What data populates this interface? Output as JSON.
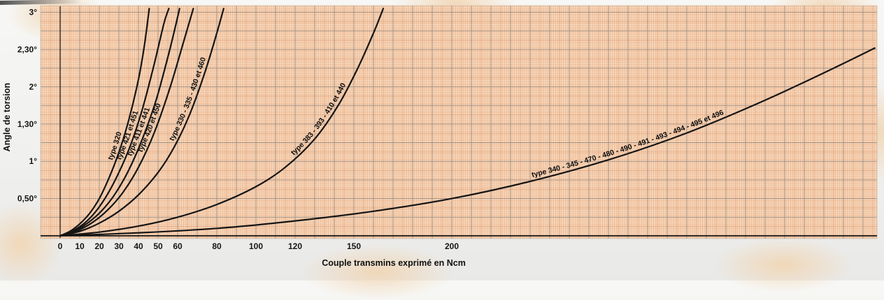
{
  "page": {
    "description": "Scanned torsion-angle vs transmitted-torque chart on orange millimeter graph paper"
  },
  "chart_data": {
    "type": "line",
    "title": "",
    "xlabel": "Couple transmins exprimé en Ncm",
    "ylabel": "Angle de torsion",
    "xlim": [
      0,
      418
    ],
    "ylim": [
      0,
      3.12
    ],
    "grid": true,
    "legend_position": "labels-along-curves",
    "colors": {
      "paper": "#f8dec6",
      "grid_fine": "#eaaa7d",
      "grid_medium": "#dd9466",
      "grid_major": "#8a7260",
      "curve": "#151515",
      "text": "#161616"
    },
    "x_ticks": [
      {
        "value": 0,
        "label": "0"
      },
      {
        "value": 10,
        "label": "10"
      },
      {
        "value": 20,
        "label": "20"
      },
      {
        "value": 30,
        "label": "30"
      },
      {
        "value": 40,
        "label": "40"
      },
      {
        "value": 50,
        "label": "50"
      },
      {
        "value": 60,
        "label": "60"
      },
      {
        "value": 80,
        "label": "80"
      },
      {
        "value": 100,
        "label": "100"
      },
      {
        "value": 120,
        "label": "120"
      },
      {
        "value": 150,
        "label": "150"
      },
      {
        "value": 200,
        "label": "200"
      }
    ],
    "y_ticks": [
      {
        "value": 3,
        "label": "3°"
      },
      {
        "value": 2.5,
        "label": "2,30°"
      },
      {
        "value": 2,
        "label": "2°"
      },
      {
        "value": 1.5,
        "label": "1,30°"
      },
      {
        "value": 1,
        "label": "1°"
      },
      {
        "value": 0.5,
        "label": "0,50°"
      }
    ],
    "series": [
      {
        "name": "type 320",
        "label_anchor_deg": 1.0,
        "points": [
          [
            0,
            0
          ],
          [
            5,
            0.06
          ],
          [
            10,
            0.16
          ],
          [
            15,
            0.3
          ],
          [
            20,
            0.5
          ],
          [
            25,
            0.78
          ],
          [
            30,
            1.12
          ],
          [
            35,
            1.55
          ],
          [
            40,
            2.1
          ],
          [
            43,
            2.55
          ],
          [
            45.5,
            3.05
          ]
        ]
      },
      {
        "name": "type 421 et 451",
        "label_anchor_deg": 1.0,
        "points": [
          [
            0,
            0
          ],
          [
            6,
            0.06
          ],
          [
            12,
            0.16
          ],
          [
            18,
            0.32
          ],
          [
            24,
            0.55
          ],
          [
            30,
            0.85
          ],
          [
            36,
            1.22
          ],
          [
            42,
            1.7
          ],
          [
            48,
            2.3
          ],
          [
            53,
            2.85
          ],
          [
            55.5,
            3.05
          ]
        ]
      },
      {
        "name": "type 411 et 441",
        "label_anchor_deg": 1.05,
        "points": [
          [
            0,
            0
          ],
          [
            7,
            0.06
          ],
          [
            14,
            0.17
          ],
          [
            21,
            0.33
          ],
          [
            28,
            0.56
          ],
          [
            35,
            0.88
          ],
          [
            42,
            1.3
          ],
          [
            49,
            1.82
          ],
          [
            56,
            2.5
          ],
          [
            61,
            3.05
          ]
        ]
      },
      {
        "name": "type 420 et 450",
        "label_anchor_deg": 1.1,
        "points": [
          [
            0,
            0
          ],
          [
            8,
            0.06
          ],
          [
            16,
            0.17
          ],
          [
            24,
            0.34
          ],
          [
            32,
            0.58
          ],
          [
            40,
            0.92
          ],
          [
            48,
            1.38
          ],
          [
            56,
            1.98
          ],
          [
            63,
            2.6
          ],
          [
            68,
            3.05
          ]
        ]
      },
      {
        "name": "type 330 - 335 - 430 et 460",
        "label_anchor_deg": 1.25,
        "points": [
          [
            0,
            0
          ],
          [
            10,
            0.06
          ],
          [
            20,
            0.17
          ],
          [
            30,
            0.33
          ],
          [
            40,
            0.55
          ],
          [
            50,
            0.85
          ],
          [
            58,
            1.18
          ],
          [
            66,
            1.62
          ],
          [
            74,
            2.2
          ],
          [
            80,
            2.72
          ],
          [
            83.5,
            3.05
          ]
        ]
      },
      {
        "name": "type 383 - 393 - 410 et 440",
        "label_anchor_deg": 1.05,
        "points": [
          [
            0,
            0
          ],
          [
            20,
            0.05
          ],
          [
            40,
            0.13
          ],
          [
            60,
            0.25
          ],
          [
            80,
            0.42
          ],
          [
            100,
            0.66
          ],
          [
            115,
            0.92
          ],
          [
            130,
            1.3
          ],
          [
            142,
            1.75
          ],
          [
            152,
            2.25
          ],
          [
            160,
            2.72
          ],
          [
            165,
            3.05
          ]
        ]
      },
      {
        "name": "type 340 - 345 - 470 - 480 - 490 - 491 - 493 - 494 - 495 et 496",
        "label_anchor_deg": 0.74,
        "points": [
          [
            0,
            0
          ],
          [
            40,
            0.04
          ],
          [
            80,
            0.1
          ],
          [
            120,
            0.2
          ],
          [
            160,
            0.33
          ],
          [
            200,
            0.5
          ],
          [
            240,
            0.73
          ],
          [
            280,
            1.02
          ],
          [
            320,
            1.38
          ],
          [
            360,
            1.82
          ],
          [
            395,
            2.25
          ],
          [
            416,
            2.52
          ]
        ]
      }
    ]
  }
}
